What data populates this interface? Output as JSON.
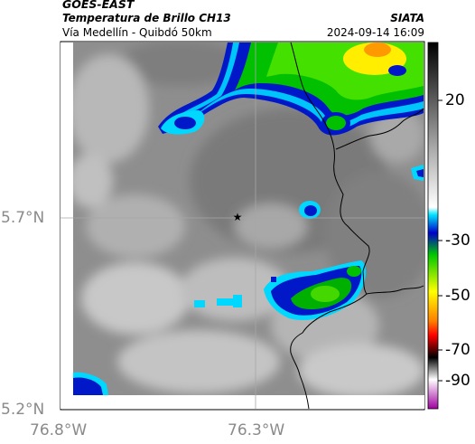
{
  "header": {
    "satellite": "GOES-EAST",
    "product": "Temperatura de Brillo CH13",
    "route": "Vía Medellín - Quibdó 50km",
    "source": "SIATA",
    "timestamp": "2024-09-14 16:09"
  },
  "map": {
    "lat_labels": [
      "5.7°N",
      "5.2°N"
    ],
    "lon_labels": [
      "76.8°W",
      "76.3°W"
    ],
    "marker": "star-marker"
  },
  "colorbar": {
    "ticks": [
      "20",
      "-30",
      "-50",
      "-70",
      "-90"
    ],
    "palette": [
      "#000000",
      "#ffffff",
      "#00e6ff",
      "#0000c8",
      "#00c800",
      "#ffff00",
      "#ff0000",
      "#000000",
      "#ffffff",
      "#a000a0"
    ]
  }
}
